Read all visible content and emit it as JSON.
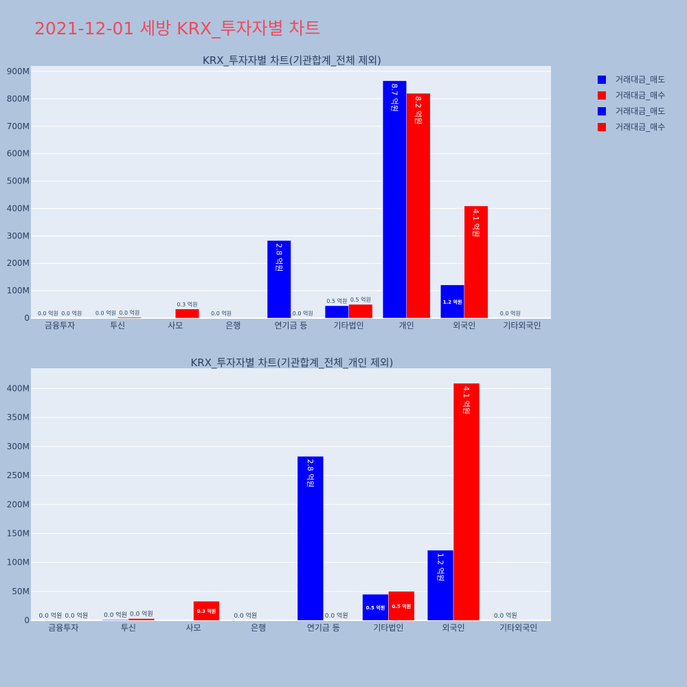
{
  "page_title": "2021-12-01 세방 KRX_투자자별 차트",
  "legend": [
    {
      "label": "거래대금_매도",
      "color": "#0000ff"
    },
    {
      "label": "거래대금_매수",
      "color": "#ff0000"
    },
    {
      "label": "거래대금_매도",
      "color": "#0000ff"
    },
    {
      "label": "거래대금_매수",
      "color": "#ff0000"
    }
  ],
  "chart_data": [
    {
      "type": "bar",
      "title": "KRX_투자자별 차트(기관합계_전체 제외)",
      "categories": [
        "금융투자",
        "투신",
        "사모",
        "은행",
        "연기금 등",
        "기타법인",
        "개인",
        "외국인",
        "기타외국인"
      ],
      "yticks": [
        "0",
        "100M",
        "200M",
        "300M",
        "400M",
        "500M",
        "600M",
        "700M",
        "800M",
        "900M"
      ],
      "ylim": [
        0,
        920000000
      ],
      "grid": true,
      "series": [
        {
          "name": "거래대금_매도",
          "color": "#0000ff",
          "values": [
            0,
            1000000,
            0,
            0,
            283000000,
            45000000,
            866000000,
            121000000,
            0
          ],
          "labels": [
            "0.0 억원",
            "0.0 억원",
            "",
            "0.0 억원",
            "2.8 억원",
            "0.5 억원",
            "8.7 억원",
            "1.2 억원",
            "0.0 억원"
          ]
        },
        {
          "name": "거래대금_매수",
          "color": "#ff0000",
          "values": [
            0,
            3000000,
            33000000,
            0,
            0,
            50000000,
            820000000,
            409000000,
            0
          ],
          "labels": [
            "0.0 억원",
            "0.0 억원",
            "0.3 억원",
            "",
            "0.0 억원",
            "0.5 억원",
            "8.2 억원",
            "4.1 억원",
            ""
          ]
        }
      ]
    },
    {
      "type": "bar",
      "title": "KRX_투자자별 차트(기관합계_전체_개인 제외)",
      "categories": [
        "금융투자",
        "투신",
        "사모",
        "은행",
        "연기금 등",
        "기타법인",
        "외국인",
        "기타외국인"
      ],
      "yticks": [
        "0",
        "50M",
        "100M",
        "150M",
        "200M",
        "250M",
        "300M",
        "350M",
        "400M"
      ],
      "ylim": [
        0,
        435000000
      ],
      "grid": true,
      "series": [
        {
          "name": "거래대금_매도",
          "color": "#0000ff",
          "values": [
            0,
            1000000,
            0,
            0,
            283000000,
            45000000,
            121000000,
            0
          ],
          "labels": [
            "0.0 억원",
            "0.0 억원",
            "",
            "0.0 억원",
            "2.8 억원",
            "0.5 억원",
            "1.2 억원",
            "0.0 억원"
          ]
        },
        {
          "name": "거래대금_매수",
          "color": "#ff0000",
          "values": [
            0,
            3000000,
            33000000,
            0,
            0,
            50000000,
            409000000,
            0
          ],
          "labels": [
            "0.0 억원",
            "0.0 억원",
            "0.3 억원",
            "",
            "0.0 억원",
            "0.5 억원",
            "4.1 억원",
            ""
          ]
        }
      ]
    }
  ]
}
